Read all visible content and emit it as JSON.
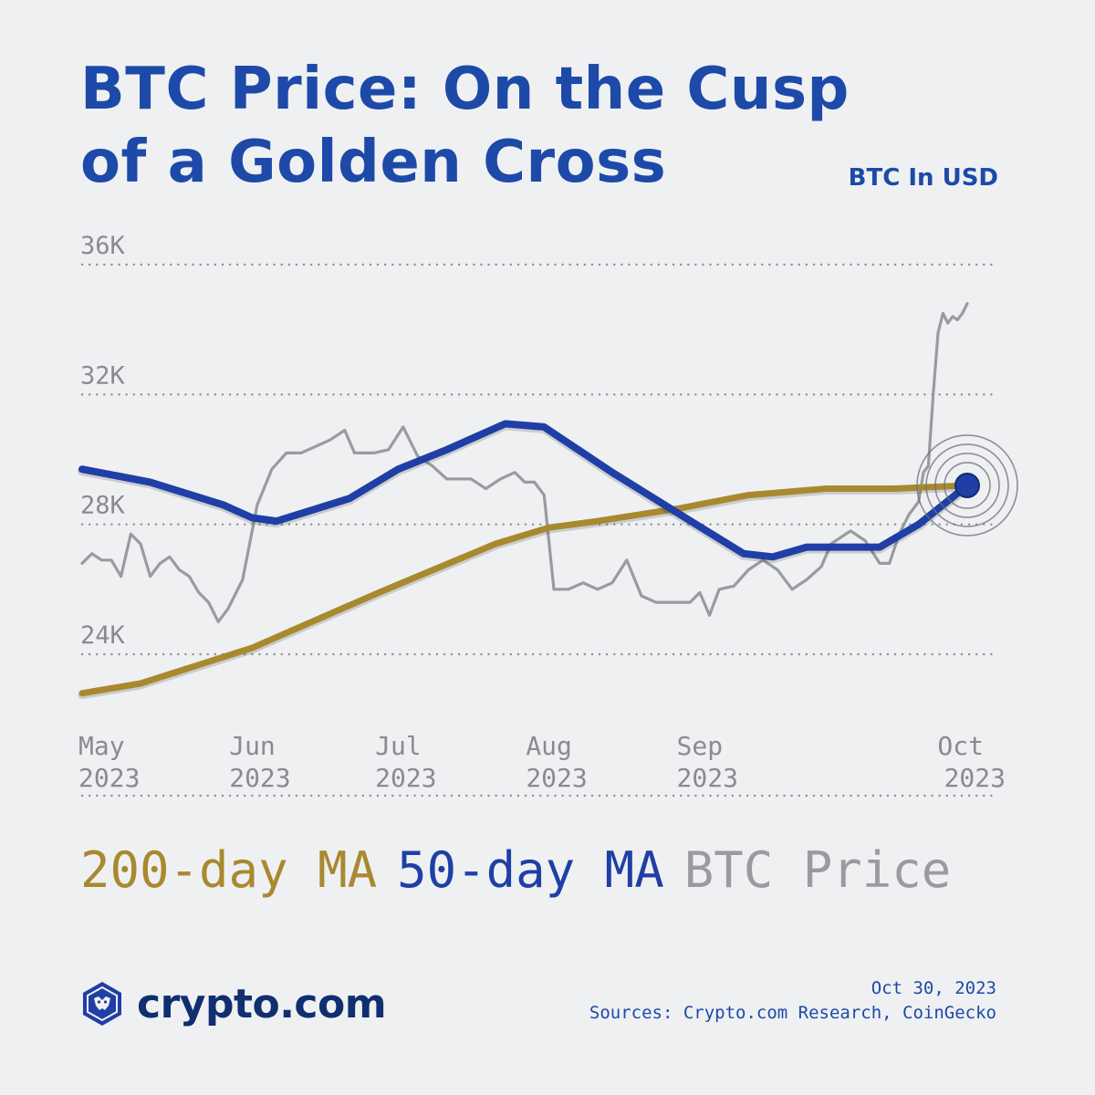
{
  "header": {
    "title_line1": "BTC Price: On the Cusp",
    "title_line2": "of a Golden Cross",
    "unit": "BTC In USD"
  },
  "brand": {
    "name": "crypto.com",
    "logo_icon": "crypto-com-lion-shield-icon"
  },
  "footer": {
    "date": "Oct 30, 2023",
    "sources": "Sources: Crypto.com Research, CoinGecko"
  },
  "chart_data": {
    "type": "line",
    "title": "BTC Price: On the Cusp of a Golden Cross",
    "unit": "BTC In USD",
    "y_ticks": [
      {
        "value": 36000,
        "label": "36K"
      },
      {
        "value": 32000,
        "label": "32K"
      },
      {
        "value": 28000,
        "label": "28K"
      },
      {
        "value": 24000,
        "label": "24K"
      }
    ],
    "x_ticks": [
      {
        "date": "2023-05-01",
        "label_month": "May",
        "label_year": "2023"
      },
      {
        "date": "2023-06-01",
        "label_month": "Jun",
        "label_year": "2023"
      },
      {
        "date": "2023-07-01",
        "label_month": "Jul",
        "label_year": "2023"
      },
      {
        "date": "2023-08-01",
        "label_month": "Aug",
        "label_year": "2023"
      },
      {
        "date": "2023-09-01",
        "label_month": "Sep",
        "label_year": "2023"
      },
      {
        "date": "2023-10-01",
        "label_month": "Oct",
        "label_year": "2023"
      }
    ],
    "ylim": [
      22000,
      36000
    ],
    "xlim": [
      "2023-05-01",
      "2023-10-30"
    ],
    "grid": "horizontal dotted",
    "legend_position": "bottom",
    "highlight": {
      "date": "2023-10-30",
      "value": 29200,
      "label": ""
    },
    "series": [
      {
        "name": "200-day MA",
        "color": "#a8892e",
        "points": [
          {
            "x": "2023-05-01",
            "y": 22800
          },
          {
            "x": "2023-05-13",
            "y": 23100
          },
          {
            "x": "2023-06-05",
            "y": 24200
          },
          {
            "x": "2023-07-01",
            "y": 25900
          },
          {
            "x": "2023-07-25",
            "y": 27400
          },
          {
            "x": "2023-08-05",
            "y": 27900
          },
          {
            "x": "2023-08-15",
            "y": 28100
          },
          {
            "x": "2023-09-01",
            "y": 28500
          },
          {
            "x": "2023-09-15",
            "y": 28900
          },
          {
            "x": "2023-10-01",
            "y": 29100
          },
          {
            "x": "2023-10-15",
            "y": 29100
          },
          {
            "x": "2023-10-30",
            "y": 29200
          }
        ]
      },
      {
        "name": "50-day MA",
        "color": "#1f3fa6",
        "points": [
          {
            "x": "2023-05-01",
            "y": 29700
          },
          {
            "x": "2023-05-15",
            "y": 29300
          },
          {
            "x": "2023-05-30",
            "y": 28600
          },
          {
            "x": "2023-06-05",
            "y": 28200
          },
          {
            "x": "2023-06-10",
            "y": 28100
          },
          {
            "x": "2023-06-25",
            "y": 28800
          },
          {
            "x": "2023-07-05",
            "y": 29700
          },
          {
            "x": "2023-07-15",
            "y": 30300
          },
          {
            "x": "2023-07-27",
            "y": 31100
          },
          {
            "x": "2023-08-04",
            "y": 31000
          },
          {
            "x": "2023-08-18",
            "y": 29600
          },
          {
            "x": "2023-09-01",
            "y": 28300
          },
          {
            "x": "2023-09-14",
            "y": 27100
          },
          {
            "x": "2023-09-20",
            "y": 27000
          },
          {
            "x": "2023-09-27",
            "y": 27300
          },
          {
            "x": "2023-10-12",
            "y": 27300
          },
          {
            "x": "2023-10-20",
            "y": 28000
          },
          {
            "x": "2023-10-30",
            "y": 29200
          }
        ]
      },
      {
        "name": "BTC Price",
        "color": "#9a9b9e",
        "points": [
          {
            "x": "2023-05-01",
            "y": 26800
          },
          {
            "x": "2023-05-03",
            "y": 27100
          },
          {
            "x": "2023-05-05",
            "y": 26900
          },
          {
            "x": "2023-05-07",
            "y": 26900
          },
          {
            "x": "2023-05-09",
            "y": 26400
          },
          {
            "x": "2023-05-11",
            "y": 27700
          },
          {
            "x": "2023-05-13",
            "y": 27400
          },
          {
            "x": "2023-05-15",
            "y": 26400
          },
          {
            "x": "2023-05-17",
            "y": 26800
          },
          {
            "x": "2023-05-19",
            "y": 27000
          },
          {
            "x": "2023-05-21",
            "y": 26600
          },
          {
            "x": "2023-05-23",
            "y": 26400
          },
          {
            "x": "2023-05-25",
            "y": 25900
          },
          {
            "x": "2023-05-27",
            "y": 25600
          },
          {
            "x": "2023-05-29",
            "y": 25000
          },
          {
            "x": "2023-05-31",
            "y": 25400
          },
          {
            "x": "2023-06-03",
            "y": 26300
          },
          {
            "x": "2023-06-06",
            "y": 28600
          },
          {
            "x": "2023-06-09",
            "y": 29700
          },
          {
            "x": "2023-06-12",
            "y": 30200
          },
          {
            "x": "2023-06-15",
            "y": 30200
          },
          {
            "x": "2023-06-18",
            "y": 30400
          },
          {
            "x": "2023-06-21",
            "y": 30600
          },
          {
            "x": "2023-06-24",
            "y": 30900
          },
          {
            "x": "2023-06-26",
            "y": 30200
          },
          {
            "x": "2023-06-30",
            "y": 30200
          },
          {
            "x": "2023-07-03",
            "y": 30300
          },
          {
            "x": "2023-07-06",
            "y": 31000
          },
          {
            "x": "2023-07-09",
            "y": 30100
          },
          {
            "x": "2023-07-12",
            "y": 29800
          },
          {
            "x": "2023-07-15",
            "y": 29400
          },
          {
            "x": "2023-07-17",
            "y": 29400
          },
          {
            "x": "2023-07-20",
            "y": 29400
          },
          {
            "x": "2023-07-23",
            "y": 29100
          },
          {
            "x": "2023-07-26",
            "y": 29400
          },
          {
            "x": "2023-07-29",
            "y": 29600
          },
          {
            "x": "2023-07-31",
            "y": 29300
          },
          {
            "x": "2023-08-02",
            "y": 29300
          },
          {
            "x": "2023-08-04",
            "y": 28900
          },
          {
            "x": "2023-08-06",
            "y": 26000
          },
          {
            "x": "2023-08-09",
            "y": 26000
          },
          {
            "x": "2023-08-12",
            "y": 26200
          },
          {
            "x": "2023-08-15",
            "y": 26000
          },
          {
            "x": "2023-08-18",
            "y": 26200
          },
          {
            "x": "2023-08-21",
            "y": 26900
          },
          {
            "x": "2023-08-24",
            "y": 25800
          },
          {
            "x": "2023-08-27",
            "y": 25600
          },
          {
            "x": "2023-08-31",
            "y": 25600
          },
          {
            "x": "2023-09-03",
            "y": 25600
          },
          {
            "x": "2023-09-05",
            "y": 25900
          },
          {
            "x": "2023-09-07",
            "y": 25200
          },
          {
            "x": "2023-09-09",
            "y": 26000
          },
          {
            "x": "2023-09-12",
            "y": 26100
          },
          {
            "x": "2023-09-15",
            "y": 26600
          },
          {
            "x": "2023-09-18",
            "y": 26900
          },
          {
            "x": "2023-09-21",
            "y": 26600
          },
          {
            "x": "2023-09-24",
            "y": 26000
          },
          {
            "x": "2023-09-27",
            "y": 26300
          },
          {
            "x": "2023-09-30",
            "y": 26700
          },
          {
            "x": "2023-10-02",
            "y": 27400
          },
          {
            "x": "2023-10-04",
            "y": 27600
          },
          {
            "x": "2023-10-06",
            "y": 27800
          },
          {
            "x": "2023-10-09",
            "y": 27500
          },
          {
            "x": "2023-10-12",
            "y": 26800
          },
          {
            "x": "2023-10-14",
            "y": 26800
          },
          {
            "x": "2023-10-16",
            "y": 27700
          },
          {
            "x": "2023-10-18",
            "y": 28300
          },
          {
            "x": "2023-10-20",
            "y": 28700
          },
          {
            "x": "2023-10-21",
            "y": 29600
          },
          {
            "x": "2023-10-22",
            "y": 29800
          },
          {
            "x": "2023-10-23",
            "y": 32000
          },
          {
            "x": "2023-10-24",
            "y": 33900
          },
          {
            "x": "2023-10-25",
            "y": 34500
          },
          {
            "x": "2023-10-26",
            "y": 34200
          },
          {
            "x": "2023-10-27",
            "y": 34400
          },
          {
            "x": "2023-10-28",
            "y": 34300
          },
          {
            "x": "2023-10-29",
            "y": 34500
          },
          {
            "x": "2023-10-30",
            "y": 34800
          }
        ]
      }
    ]
  }
}
